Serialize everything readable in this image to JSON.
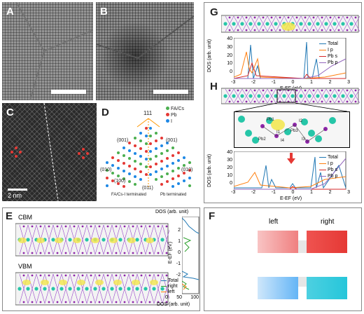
{
  "panels": {
    "A": {
      "label": "A"
    },
    "B": {
      "label": "B"
    },
    "C": {
      "label": "C",
      "scale_text": "2 nm"
    },
    "D": {
      "label": "D",
      "legend": [
        "FA/Cs",
        "Pb",
        "I"
      ],
      "legend_colors": [
        "#4caf50",
        "#e53935",
        "#1e88e5"
      ],
      "direction_top": "111",
      "facets": [
        "(001)",
        "(001)",
        "(010)",
        "(010)",
        "(100)",
        "(011)"
      ],
      "termination_left": "FA/Cs-I terminated",
      "termination_right": "Pb terminated"
    },
    "E": {
      "label": "E",
      "cbm": "CBM",
      "vbm": "VBM",
      "dos_title": "DOS (arb. unit)",
      "dos_xlabel": "DOS (arb. unit)",
      "dos_ylabel": "E-EF (eV)",
      "dos_xticks": [
        "0",
        "50",
        "100"
      ],
      "dos_yticks": [
        "2",
        "1",
        "0",
        "-1",
        "-2"
      ],
      "legend": [
        "Total",
        "right",
        "left"
      ],
      "legend_colors": [
        "#1f77b4",
        "#2ca02c",
        "#ff7f0e"
      ]
    },
    "F": {
      "label": "F",
      "left": "left",
      "right": "right",
      "colors": {
        "top_left": "#f08080",
        "top_right": "#e53935",
        "bottom_left": "#64b5f6",
        "bottom_right": "#26c6da"
      }
    },
    "G": {
      "label": "G",
      "ylabel": "DOS (arb. unit)",
      "xlabel": "E-EF (eV)",
      "yticks": [
        "40",
        "30",
        "20",
        "10",
        "0"
      ],
      "xticks": [
        "-3",
        "-2",
        "-1",
        "0",
        "1",
        "2",
        "3"
      ],
      "legend": [
        "Total",
        "I p",
        "Pb s",
        "Pb p"
      ],
      "legend_colors": [
        "#1f77b4",
        "#ff7f0e",
        "#d62728",
        "#9467bd"
      ]
    },
    "H": {
      "label": "H",
      "ylabel": "DOS (arb. unit)",
      "xlabel": "E-EF (eV)",
      "yticks": [
        "40",
        "30",
        "20",
        "10",
        "0"
      ],
      "xticks": [
        "-3",
        "-2",
        "-1",
        "0",
        "1",
        "2",
        "3"
      ],
      "legend": [
        "Total",
        "I p",
        "Pb s",
        "Pb p"
      ],
      "legend_colors": [
        "#1f77b4",
        "#ff7f0e",
        "#d62728",
        "#9467bd"
      ],
      "atom_labels": [
        "Pb1",
        "I2",
        "I1",
        "Pb3",
        "Pb2",
        "I4",
        "I3"
      ]
    }
  }
}
